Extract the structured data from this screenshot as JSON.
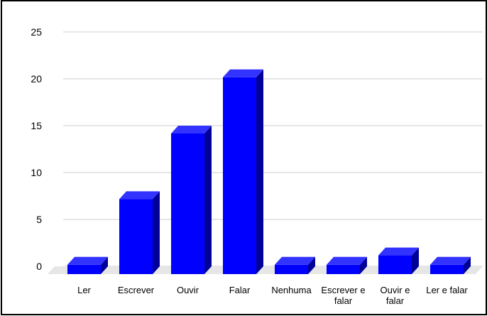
{
  "chart_data": {
    "type": "bar",
    "style": "3d-column",
    "categories": [
      "Ler",
      "Escrever",
      "Ouvir",
      "Falar",
      "Nenhuma",
      "Escrever e falar",
      "Ouvir e falar",
      "Ler e falar"
    ],
    "category_lines": [
      [
        "Ler"
      ],
      [
        "Escrever"
      ],
      [
        "Ouvir"
      ],
      [
        "Falar"
      ],
      [
        "Nenhuma"
      ],
      [
        "Escrever e",
        "falar"
      ],
      [
        "Ouvir e",
        "falar"
      ],
      [
        "Ler e falar"
      ]
    ],
    "values": [
      1,
      8,
      15,
      21,
      1,
      1,
      2,
      1
    ],
    "ylim": [
      0,
      25
    ],
    "yticks": [
      0,
      5,
      10,
      15,
      20,
      25
    ],
    "grid": true,
    "legend": "none",
    "title": "",
    "xlabel": "",
    "ylabel": "",
    "colors": {
      "front": "#0000ff",
      "side": "#000099",
      "top": "#3333ff",
      "floor": "#e6e6e6",
      "grid": "#cccccc"
    }
  }
}
